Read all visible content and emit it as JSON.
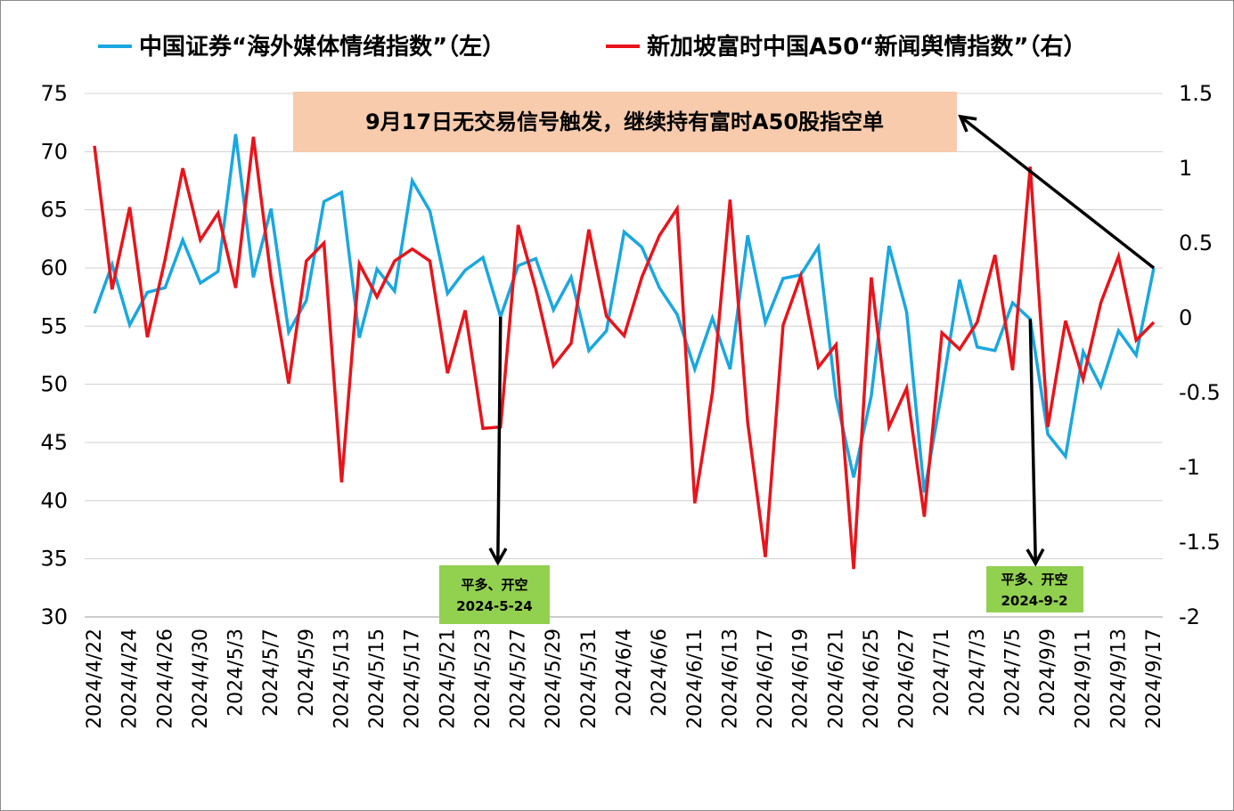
{
  "chart_data": {
    "type": "line",
    "x": [
      "2024/4/22",
      "2024/4/23",
      "2024/4/24",
      "2024/4/25",
      "2024/4/26",
      "2024/4/29",
      "2024/4/30",
      "2024/5/2",
      "2024/5/3",
      "2024/5/6",
      "2024/5/7",
      "2024/5/8",
      "2024/5/9",
      "2024/5/10",
      "2024/5/13",
      "2024/5/14",
      "2024/5/15",
      "2024/5/16",
      "2024/5/17",
      "2024/5/20",
      "2024/5/21",
      "2024/5/22",
      "2024/5/23",
      "2024/5/24",
      "2024/5/27",
      "2024/5/28",
      "2024/5/29",
      "2024/5/30",
      "2024/5/31",
      "2024/6/3",
      "2024/6/4",
      "2024/6/5",
      "2024/6/6",
      "2024/6/7",
      "2024/6/11",
      "2024/6/12",
      "2024/6/13",
      "2024/6/14",
      "2024/6/17",
      "2024/6/18",
      "2024/6/19",
      "2024/6/20",
      "2024/6/21",
      "2024/6/24",
      "2024/6/25",
      "2024/6/26",
      "2024/6/27",
      "2024/6/28",
      "2024/7/1",
      "2024/7/2",
      "2024/7/3",
      "2024/7/4",
      "2024/7/5",
      "2024/9/2",
      "2024/9/9",
      "2024/9/10",
      "2024/9/11",
      "2024/9/12",
      "2024/9/13",
      "2024/9/14",
      "2024/9/17"
    ],
    "x_tick_labels": [
      "2024/4/22",
      "2024/4/24",
      "2024/4/26",
      "2024/4/30",
      "2024/5/3",
      "2024/5/7",
      "2024/5/9",
      "2024/5/13",
      "2024/5/15",
      "2024/5/17",
      "2024/5/21",
      "2024/5/23",
      "2024/5/27",
      "2024/5/29",
      "2024/5/31",
      "2024/6/4",
      "2024/6/6",
      "2024/6/11",
      "2024/6/13",
      "2024/6/17",
      "2024/6/19",
      "2024/6/21",
      "2024/6/25",
      "2024/6/27",
      "2024/7/1",
      "2024/7/3",
      "2024/7/5",
      "2024/9/9",
      "2024/9/11",
      "2024/9/13",
      "2024/9/17"
    ],
    "series": [
      {
        "name": "中国证券“海外媒体情绪指数”（左）",
        "axis": "left",
        "color": "#1aa7e0",
        "values": [
          56.1,
          60.3,
          55.1,
          57.9,
          58.3,
          62.4,
          58.7,
          59.7,
          71.5,
          59.2,
          65.1,
          54.5,
          57.2,
          65.7,
          66.5,
          54.0,
          59.9,
          58.0,
          67.5,
          64.9,
          57.8,
          59.8,
          60.9,
          55.8,
          60.2,
          60.8,
          56.4,
          59.2,
          52.9,
          54.6,
          63.1,
          61.8,
          58.3,
          56.0,
          51.3,
          55.7,
          51.3,
          62.8,
          55.3,
          59.1,
          59.4,
          61.8,
          48.9,
          42.0,
          49.0,
          61.9,
          56.2,
          40.7,
          49.4,
          59.0,
          53.2,
          52.9,
          57.0,
          55.6,
          45.7,
          43.8,
          52.8,
          49.8,
          54.6,
          52.5,
          60.0
        ]
      },
      {
        "name": "新加坡富时中国A50“新闻舆情指数”（右）",
        "axis": "right",
        "color": "#e8141b",
        "values": [
          1.15,
          0.19,
          0.74,
          -0.13,
          0.39,
          1.0,
          0.52,
          0.7,
          0.2,
          1.21,
          0.27,
          -0.44,
          0.38,
          0.5,
          -1.1,
          0.36,
          0.14,
          0.38,
          0.46,
          0.38,
          -0.37,
          0.05,
          -0.74,
          -0.73,
          0.62,
          0.19,
          -0.32,
          -0.17,
          0.59,
          0.01,
          -0.12,
          0.27,
          0.55,
          0.73,
          -1.24,
          -0.5,
          0.79,
          -0.7,
          -1.6,
          -0.05,
          0.28,
          -0.33,
          -0.18,
          -1.68,
          0.27,
          -0.73,
          -0.47,
          -1.33,
          -0.1,
          -0.21,
          -0.03,
          0.42,
          -0.35,
          1.01,
          -0.73,
          -0.02,
          -0.41,
          0.1,
          0.41,
          -0.15,
          -0.03
        ]
      }
    ],
    "y_left": {
      "min": 30,
      "max": 75,
      "step": 5,
      "ticks": [
        "30",
        "35",
        "40",
        "45",
        "50",
        "55",
        "60",
        "65",
        "70",
        "75"
      ]
    },
    "y_right": {
      "min": -2,
      "max": 1.5,
      "ticks": [
        "-2",
        "-1.5",
        "-1",
        "-0.5",
        "0",
        "0.5",
        "1",
        "1.5"
      ]
    },
    "grid": true,
    "legend_position": "top",
    "annotations": [
      {
        "text": "9月17日无交易信号触发，继续持有富时A50股指空单",
        "background": "#f7cbac",
        "points_to": "2024/9/17"
      },
      {
        "line1": "平多、开空",
        "line2": "2024-5-24",
        "background": "#92d050",
        "points_from": "2024/5/24"
      },
      {
        "line1": "平多、开空",
        "line2": "2024-9-2",
        "background": "#92d050",
        "points_from": "2024/9/2"
      }
    ]
  }
}
